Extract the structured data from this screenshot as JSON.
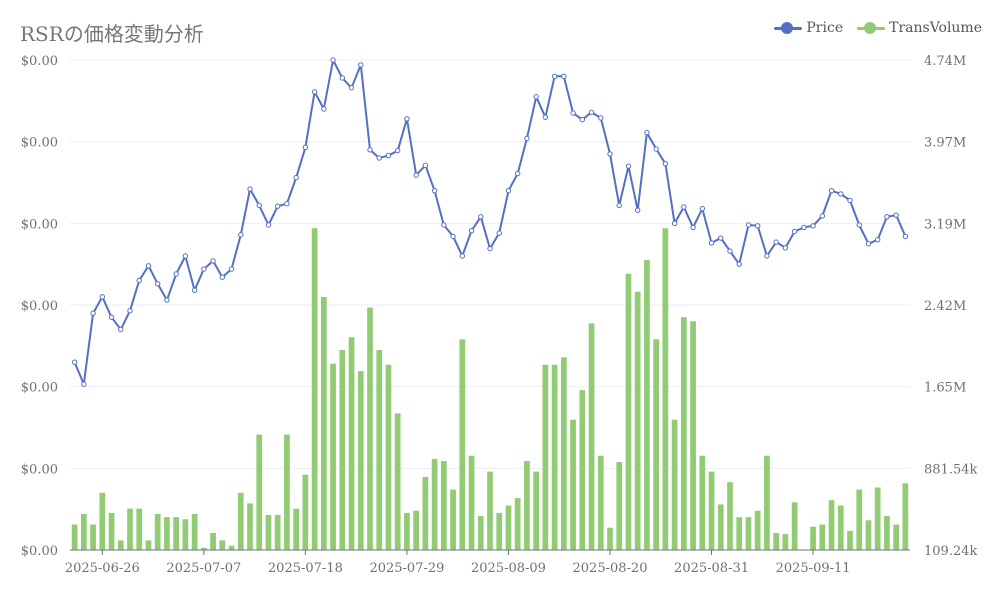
{
  "title": "RSRの価格変動分析",
  "colors": {
    "price": "#5470c6",
    "volume": "#91cc75",
    "grid": "#eeeeee",
    "axis_text": "#6e7079"
  },
  "legend": [
    {
      "label": "Price",
      "color": "#5470c6"
    },
    {
      "label": "TransVolume",
      "color": "#91cc75"
    }
  ],
  "chart_data": {
    "type": "bar+line",
    "x_tick_labels": [
      "2025-06-26",
      "2025-07-07",
      "2025-07-18",
      "2025-07-29",
      "2025-08-09",
      "2025-08-20",
      "2025-08-31",
      "2025-09-11"
    ],
    "x_start": "2025-06-23",
    "x_end": "2025-09-17",
    "left_axis": {
      "labels": [
        "$0.00",
        "$0.00",
        "$0.00",
        "$0.00",
        "$0.00",
        "$0.00",
        "$0.00"
      ],
      "ylim": [
        0,
        6
      ]
    },
    "right_axis": {
      "labels": [
        "109.24k",
        "881.54k",
        "1.65M",
        "2.42M",
        "3.19M",
        "3.97M",
        "4.74M"
      ],
      "ylim": [
        109240,
        4740000
      ]
    },
    "series": [
      {
        "name": "Price",
        "type": "line",
        "values": [
          2.3,
          2.03,
          2.9,
          3.1,
          2.85,
          2.7,
          2.93,
          3.3,
          3.48,
          3.26,
          3.06,
          3.38,
          3.6,
          3.18,
          3.44,
          3.54,
          3.34,
          3.44,
          3.86,
          4.42,
          4.22,
          3.98,
          4.21,
          4.24,
          4.56,
          4.93,
          5.61,
          5.4,
          6.0,
          5.78,
          5.66,
          5.94,
          4.9,
          4.8,
          4.83,
          4.89,
          5.28,
          4.59,
          4.71,
          4.4,
          3.98,
          3.84,
          3.6,
          3.91,
          4.08,
          3.69,
          3.88,
          4.4,
          4.61,
          5.04,
          5.55,
          5.3,
          5.8,
          5.8,
          5.35,
          5.27,
          5.36,
          5.29,
          4.85,
          4.22,
          4.7,
          4.16,
          5.11,
          4.91,
          4.73,
          4.0,
          4.2,
          3.95,
          4.18,
          3.76,
          3.82,
          3.66,
          3.5,
          3.98,
          3.97,
          3.6,
          3.77,
          3.7,
          3.9,
          3.95,
          3.97,
          4.09,
          4.4,
          4.36,
          4.28,
          3.98,
          3.75,
          3.8,
          4.08,
          4.1,
          3.84
        ]
      },
      {
        "name": "TransVolume",
        "type": "bar",
        "values": [
          350000,
          450000,
          350000,
          650000,
          460000,
          200000,
          500000,
          500000,
          200000,
          450000,
          420000,
          420000,
          400000,
          450000,
          130000,
          270000,
          200000,
          150000,
          650000,
          550000,
          1200000,
          440000,
          440000,
          1200000,
          500000,
          820000,
          3150000,
          2500000,
          1870000,
          2000000,
          2120000,
          1800000,
          2400000,
          2000000,
          1860000,
          1400000,
          460000,
          480000,
          800000,
          970000,
          950000,
          680000,
          2100000,
          1000000,
          430000,
          850000,
          460000,
          530000,
          600000,
          950000,
          850000,
          1860000,
          1860000,
          1930000,
          1340000,
          1620000,
          2250000,
          1000000,
          320000,
          940000,
          2720000,
          2550000,
          2850000,
          2100000,
          3150000,
          1340000,
          2310000,
          2270000,
          1000000,
          850000,
          540000,
          750000,
          420000,
          420000,
          480000,
          1000000,
          270000,
          260000,
          560000,
          110000,
          330000,
          350000,
          580000,
          530000,
          290000,
          680000,
          390000,
          700000,
          430000,
          350000,
          740000
        ]
      }
    ]
  }
}
